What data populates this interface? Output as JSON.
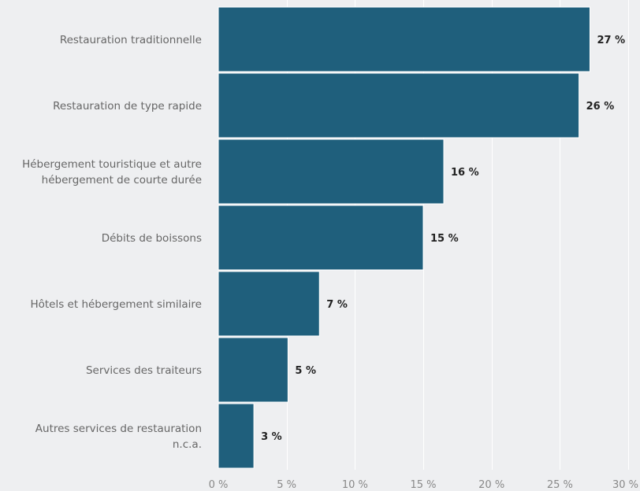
{
  "chart_data": {
    "type": "bar",
    "orientation": "horizontal",
    "title": "",
    "xlabel": "",
    "ylabel": "",
    "categories": [
      [
        "Restauration traditionnelle"
      ],
      [
        "Restauration de type rapide"
      ],
      [
        "Hébergement touristique et autre",
        "hébergement de courte durée"
      ],
      [
        "Débits de boissons"
      ],
      [
        "Hôtels et hébergement similaire"
      ],
      [
        "Services des traiteurs"
      ],
      [
        "Autres services de restauration",
        "n.c.a."
      ]
    ],
    "values": [
      27.2,
      26.4,
      16.5,
      15.0,
      7.4,
      5.1,
      2.6
    ],
    "data_labels": [
      "27 %",
      "26 %",
      "16 %",
      "15 %",
      "7 %",
      "5 %",
      "3 %"
    ],
    "xlim": [
      0,
      30
    ],
    "x_ticks": [
      0,
      5,
      10,
      15,
      20,
      25,
      30
    ],
    "x_tick_labels": [
      "0 %",
      "5 %",
      "10 %",
      "15 %",
      "20 %",
      "25 %",
      "30 %"
    ],
    "grid": true,
    "colors": {
      "bar": "#1f5f7c",
      "background": "#eeeff1",
      "grid": "#ffffff"
    }
  }
}
